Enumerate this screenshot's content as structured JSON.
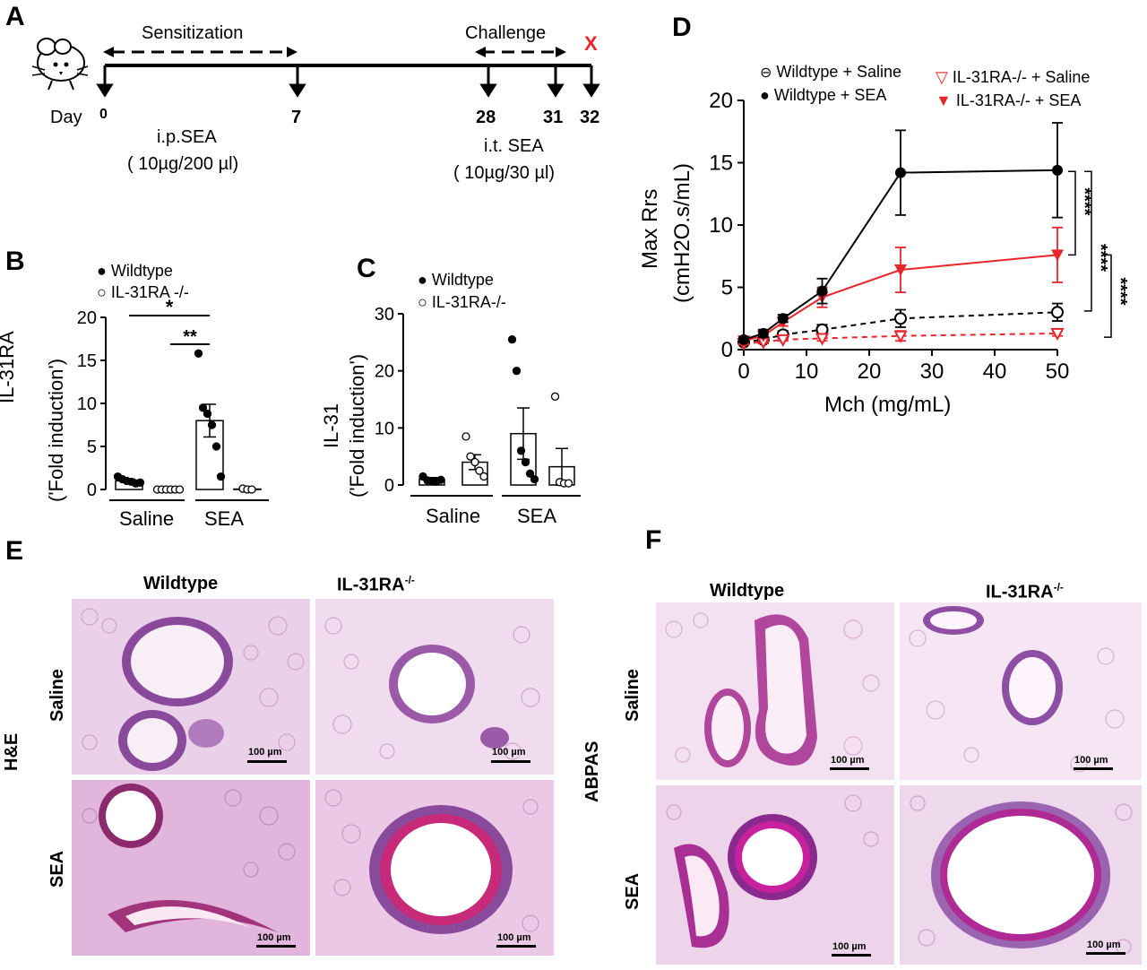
{
  "panel_labels": {
    "a": "A",
    "b": "B",
    "c": "C",
    "d": "D",
    "e": "E",
    "f": "F"
  },
  "timeline": {
    "day_label": "Day",
    "days": [
      "0",
      "7",
      "28",
      "31",
      "32"
    ],
    "sensitization": "Sensitization",
    "challenge": "Challenge",
    "sacrifice_mark": "X",
    "ip_line1": "i.p.SEA",
    "ip_line2": "( 10µg/200 µl)",
    "it_line1": "i.t. SEA",
    "it_line2": "( 10µg/30 µl)"
  },
  "colors": {
    "red": "#e8252b",
    "black": "#000000",
    "tissue": "#d8a6d4"
  },
  "chart_data": [
    {
      "panel": "B",
      "type": "bar",
      "ylabel_line1": "IL-31RA",
      "ylabel_line2": "('Fold induction')",
      "ylim": [
        0,
        20
      ],
      "yticks": [
        "0",
        "5",
        "10",
        "15",
        "20"
      ],
      "group_labels": [
        "Saline",
        "SEA"
      ],
      "legend": [
        "Wildtype",
        "IL-31RA -/-"
      ],
      "bars": [
        {
          "group": "Saline",
          "genotype": "Wildtype",
          "mean": 1.0,
          "sem": 0.2,
          "points": [
            1.5,
            1.2,
            1.0,
            0.9,
            0.7,
            0.8
          ]
        },
        {
          "group": "Saline",
          "genotype": "IL-31RA-/-",
          "mean": 0.0,
          "sem": 0.0,
          "points": [
            0,
            0,
            0,
            0,
            0,
            0
          ]
        },
        {
          "group": "SEA",
          "genotype": "Wildtype",
          "mean": 8.0,
          "sem": 1.9,
          "points": [
            15.8,
            9.5,
            8.8,
            7.5,
            5.0,
            1.5
          ]
        },
        {
          "group": "SEA",
          "genotype": "IL-31RA-/-",
          "mean": 0.05,
          "sem": 0.0,
          "points": [
            0.1,
            0,
            0
          ]
        }
      ],
      "significance": [
        "*",
        "**"
      ]
    },
    {
      "panel": "C",
      "type": "bar",
      "ylabel_line1": "IL-31",
      "ylabel_line2": "('Fold induction')",
      "ylim": [
        0,
        30
      ],
      "yticks": [
        "0",
        "10",
        "20",
        "30"
      ],
      "group_labels": [
        "Saline",
        "SEA"
      ],
      "legend": [
        "Wildtype",
        "IL-31RA-/-"
      ],
      "bars": [
        {
          "group": "Saline",
          "genotype": "Wildtype",
          "mean": 1.0,
          "sem": 0.3,
          "points": [
            1.5,
            0.8,
            0.7,
            0.6,
            0.9
          ]
        },
        {
          "group": "Saline",
          "genotype": "IL-31RA-/-",
          "mean": 4.0,
          "sem": 1.3,
          "points": [
            8.5,
            5.0,
            4.0,
            2.5,
            1.5
          ]
        },
        {
          "group": "SEA",
          "genotype": "Wildtype",
          "mean": 9.0,
          "sem": 4.5,
          "points": [
            25.5,
            20.0,
            6.0,
            4.0,
            2.0,
            1.0
          ]
        },
        {
          "group": "SEA",
          "genotype": "IL-31RA-/-",
          "mean": 3.2,
          "sem": 3.2,
          "points": [
            15.5,
            0.5,
            0.3,
            0.3
          ]
        }
      ]
    },
    {
      "panel": "D",
      "type": "line",
      "ylabel_line1": "Max Rrs",
      "ylabel_line2": "(cmH2O.s/mL)",
      "xlabel": "Mch (mg/mL)",
      "xlim": [
        0,
        50
      ],
      "ylim": [
        0,
        20
      ],
      "xticks": [
        "0",
        "10",
        "20",
        "30",
        "40",
        "50"
      ],
      "yticks": [
        "0",
        "5",
        "10",
        "15",
        "20"
      ],
      "x": [
        0,
        3.125,
        6.25,
        12.5,
        25,
        50
      ],
      "series": [
        {
          "name": "Wildtype + Saline",
          "values": [
            0.6,
            0.8,
            1.2,
            1.6,
            2.5,
            3.0
          ],
          "errors": [
            0.2,
            0.2,
            0.3,
            0.4,
            0.7,
            0.7
          ],
          "color": "#000000",
          "dashed": true,
          "marker": "open-circle"
        },
        {
          "name": "Wildtype + SEA",
          "values": [
            0.8,
            1.3,
            2.5,
            4.7,
            14.2,
            14.4
          ],
          "errors": [
            0.2,
            0.3,
            0.3,
            1.0,
            3.4,
            3.8
          ],
          "color": "#000000",
          "dashed": false,
          "marker": "filled-circle"
        },
        {
          "name": "IL-31RA-/- + Saline",
          "values": [
            0.5,
            0.6,
            0.8,
            0.9,
            1.1,
            1.3
          ],
          "errors": [
            0.1,
            0.1,
            0.1,
            0.2,
            0.4,
            0.2
          ],
          "color": "#e8252b",
          "dashed": true,
          "marker": "open-triangle"
        },
        {
          "name": "IL-31RA-/- + SEA",
          "values": [
            0.7,
            1.1,
            2.2,
            4.2,
            6.4,
            7.6
          ],
          "errors": [
            0.2,
            0.2,
            0.3,
            0.8,
            1.8,
            2.2
          ],
          "color": "#e8252b",
          "dashed": false,
          "marker": "filled-triangle"
        }
      ],
      "significance": [
        "****",
        "****",
        "****"
      ]
    }
  ],
  "histology": {
    "e_col_wt": "Wildtype",
    "e_col_ko": "IL-31RA",
    "ko_sup": "-/-",
    "row_saline": "Saline",
    "row_sea": "SEA",
    "e_stain": "H&E",
    "f_stain": "ABPAS",
    "scale": "100 µm"
  }
}
